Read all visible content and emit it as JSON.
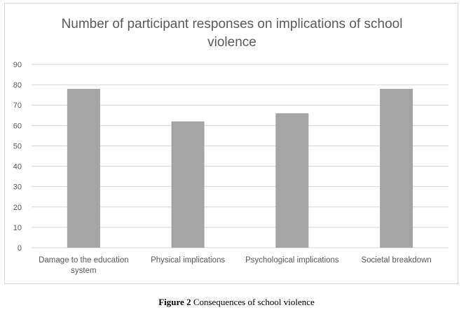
{
  "figure_caption": {
    "label": "Figure 2",
    "text": "Consequences of school violence"
  },
  "colors": {
    "bar": "#a5a5a5",
    "grid": "#d9d9d9",
    "text": "#595959",
    "frame": "#d9d9d9"
  },
  "chart_data": {
    "type": "bar",
    "title": "Number of participant responses on implications of school violence",
    "title_lines": [
      "Number of participant responses on implications of school",
      "violence"
    ],
    "xlabel": "",
    "ylabel": "",
    "categories": [
      "Damage to the education system",
      "Physical implications",
      "Psychological implications",
      "Societal breakdown"
    ],
    "category_lines": [
      [
        "Damage to the education",
        "system"
      ],
      [
        "Physical implications"
      ],
      [
        "Psychological implications"
      ],
      [
        "Societal breakdown"
      ]
    ],
    "values": [
      78,
      62,
      66,
      78
    ],
    "ylim": [
      0,
      90
    ],
    "yticks": [
      0,
      10,
      20,
      30,
      40,
      50,
      60,
      70,
      80,
      90
    ],
    "grid": true,
    "legend": "none"
  }
}
